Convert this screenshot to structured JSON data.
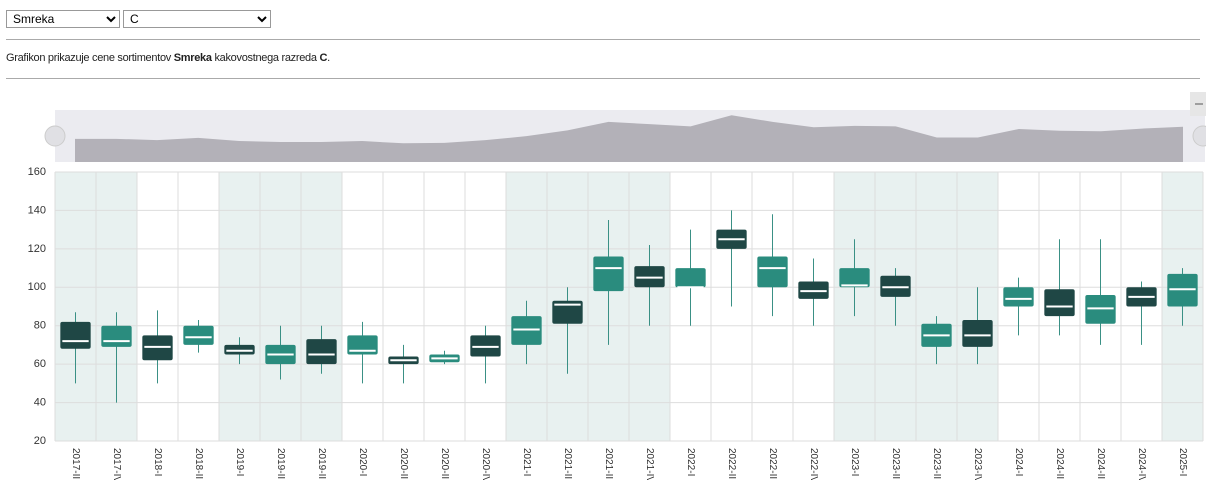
{
  "controls": {
    "species": "Smreka",
    "grade": "C"
  },
  "description": {
    "lead": "Grafikon prikazuje cene sortimentov",
    "species": "Smreka",
    "middle": "kakovostnega razreda",
    "grade": "C",
    "end": "."
  },
  "chart_data": {
    "type": "boxplot",
    "categories": [
      "2017-III",
      "2017-IV",
      "2018-I",
      "2018-II",
      "2019-I",
      "2019-II",
      "2019-III",
      "2020-I",
      "2020-II",
      "2020-III",
      "2020-IV",
      "2021-I",
      "2021-II",
      "2021-III",
      "2021-IV",
      "2022-I",
      "2022-II",
      "2022-III",
      "2022-IV",
      "2023-I",
      "2023-II",
      "2023-III",
      "2023-IV",
      "2024-I",
      "2024-II",
      "2024-III",
      "2024-IV",
      "2025-I"
    ],
    "min": [
      50,
      40,
      50,
      66,
      60,
      52,
      55,
      50,
      50,
      60,
      50,
      60,
      55,
      70,
      80,
      80,
      90,
      85,
      80,
      85,
      80,
      60,
      60,
      75,
      75,
      70,
      70,
      80
    ],
    "q1": [
      68,
      69,
      62,
      70,
      65,
      60,
      60,
      65,
      60,
      61,
      64,
      70,
      81,
      98,
      100,
      100,
      120,
      100,
      94,
      100,
      95,
      69,
      69,
      90,
      85,
      81,
      90,
      90
    ],
    "median": [
      72,
      72,
      69,
      74,
      67,
      65,
      65,
      67,
      62,
      63,
      69,
      78,
      91,
      110,
      105,
      100,
      125,
      110,
      98,
      101,
      100,
      75,
      75,
      94,
      90,
      89,
      95,
      99
    ],
    "q3": [
      82,
      80,
      75,
      80,
      70,
      70,
      73,
      75,
      64,
      65,
      75,
      85,
      93,
      116,
      111,
      110,
      130,
      116,
      103,
      110,
      106,
      81,
      83,
      100,
      99,
      96,
      100,
      107
    ],
    "max": [
      87,
      87,
      88,
      83,
      74,
      80,
      80,
      82,
      70,
      67,
      80,
      93,
      100,
      135,
      122,
      130,
      140,
      138,
      115,
      125,
      110,
      85,
      100,
      105,
      125,
      125,
      103,
      110
    ],
    "colors": [
      "#1f4745",
      "#2a8c7e",
      "#1f4745",
      "#2a8c7e",
      "#1f4745",
      "#2a8c7e",
      "#1f4745",
      "#2a8c7e",
      "#1f4745",
      "#2a8c7e",
      "#1f4745",
      "#2a8c7e",
      "#1f4745",
      "#2a8c7e",
      "#1f4745",
      "#2a8c7e",
      "#1f4745",
      "#2a8c7e",
      "#1f4745",
      "#2a8c7e",
      "#1f4745",
      "#2a8c7e",
      "#1f4745",
      "#2a8c7e",
      "#1f4745",
      "#2a8c7e",
      "#1f4745",
      "#2a8c7e"
    ],
    "ylim": [
      20,
      160
    ],
    "yticks": [
      20,
      40,
      60,
      80,
      100,
      120,
      140,
      160
    ],
    "grid": true
  }
}
